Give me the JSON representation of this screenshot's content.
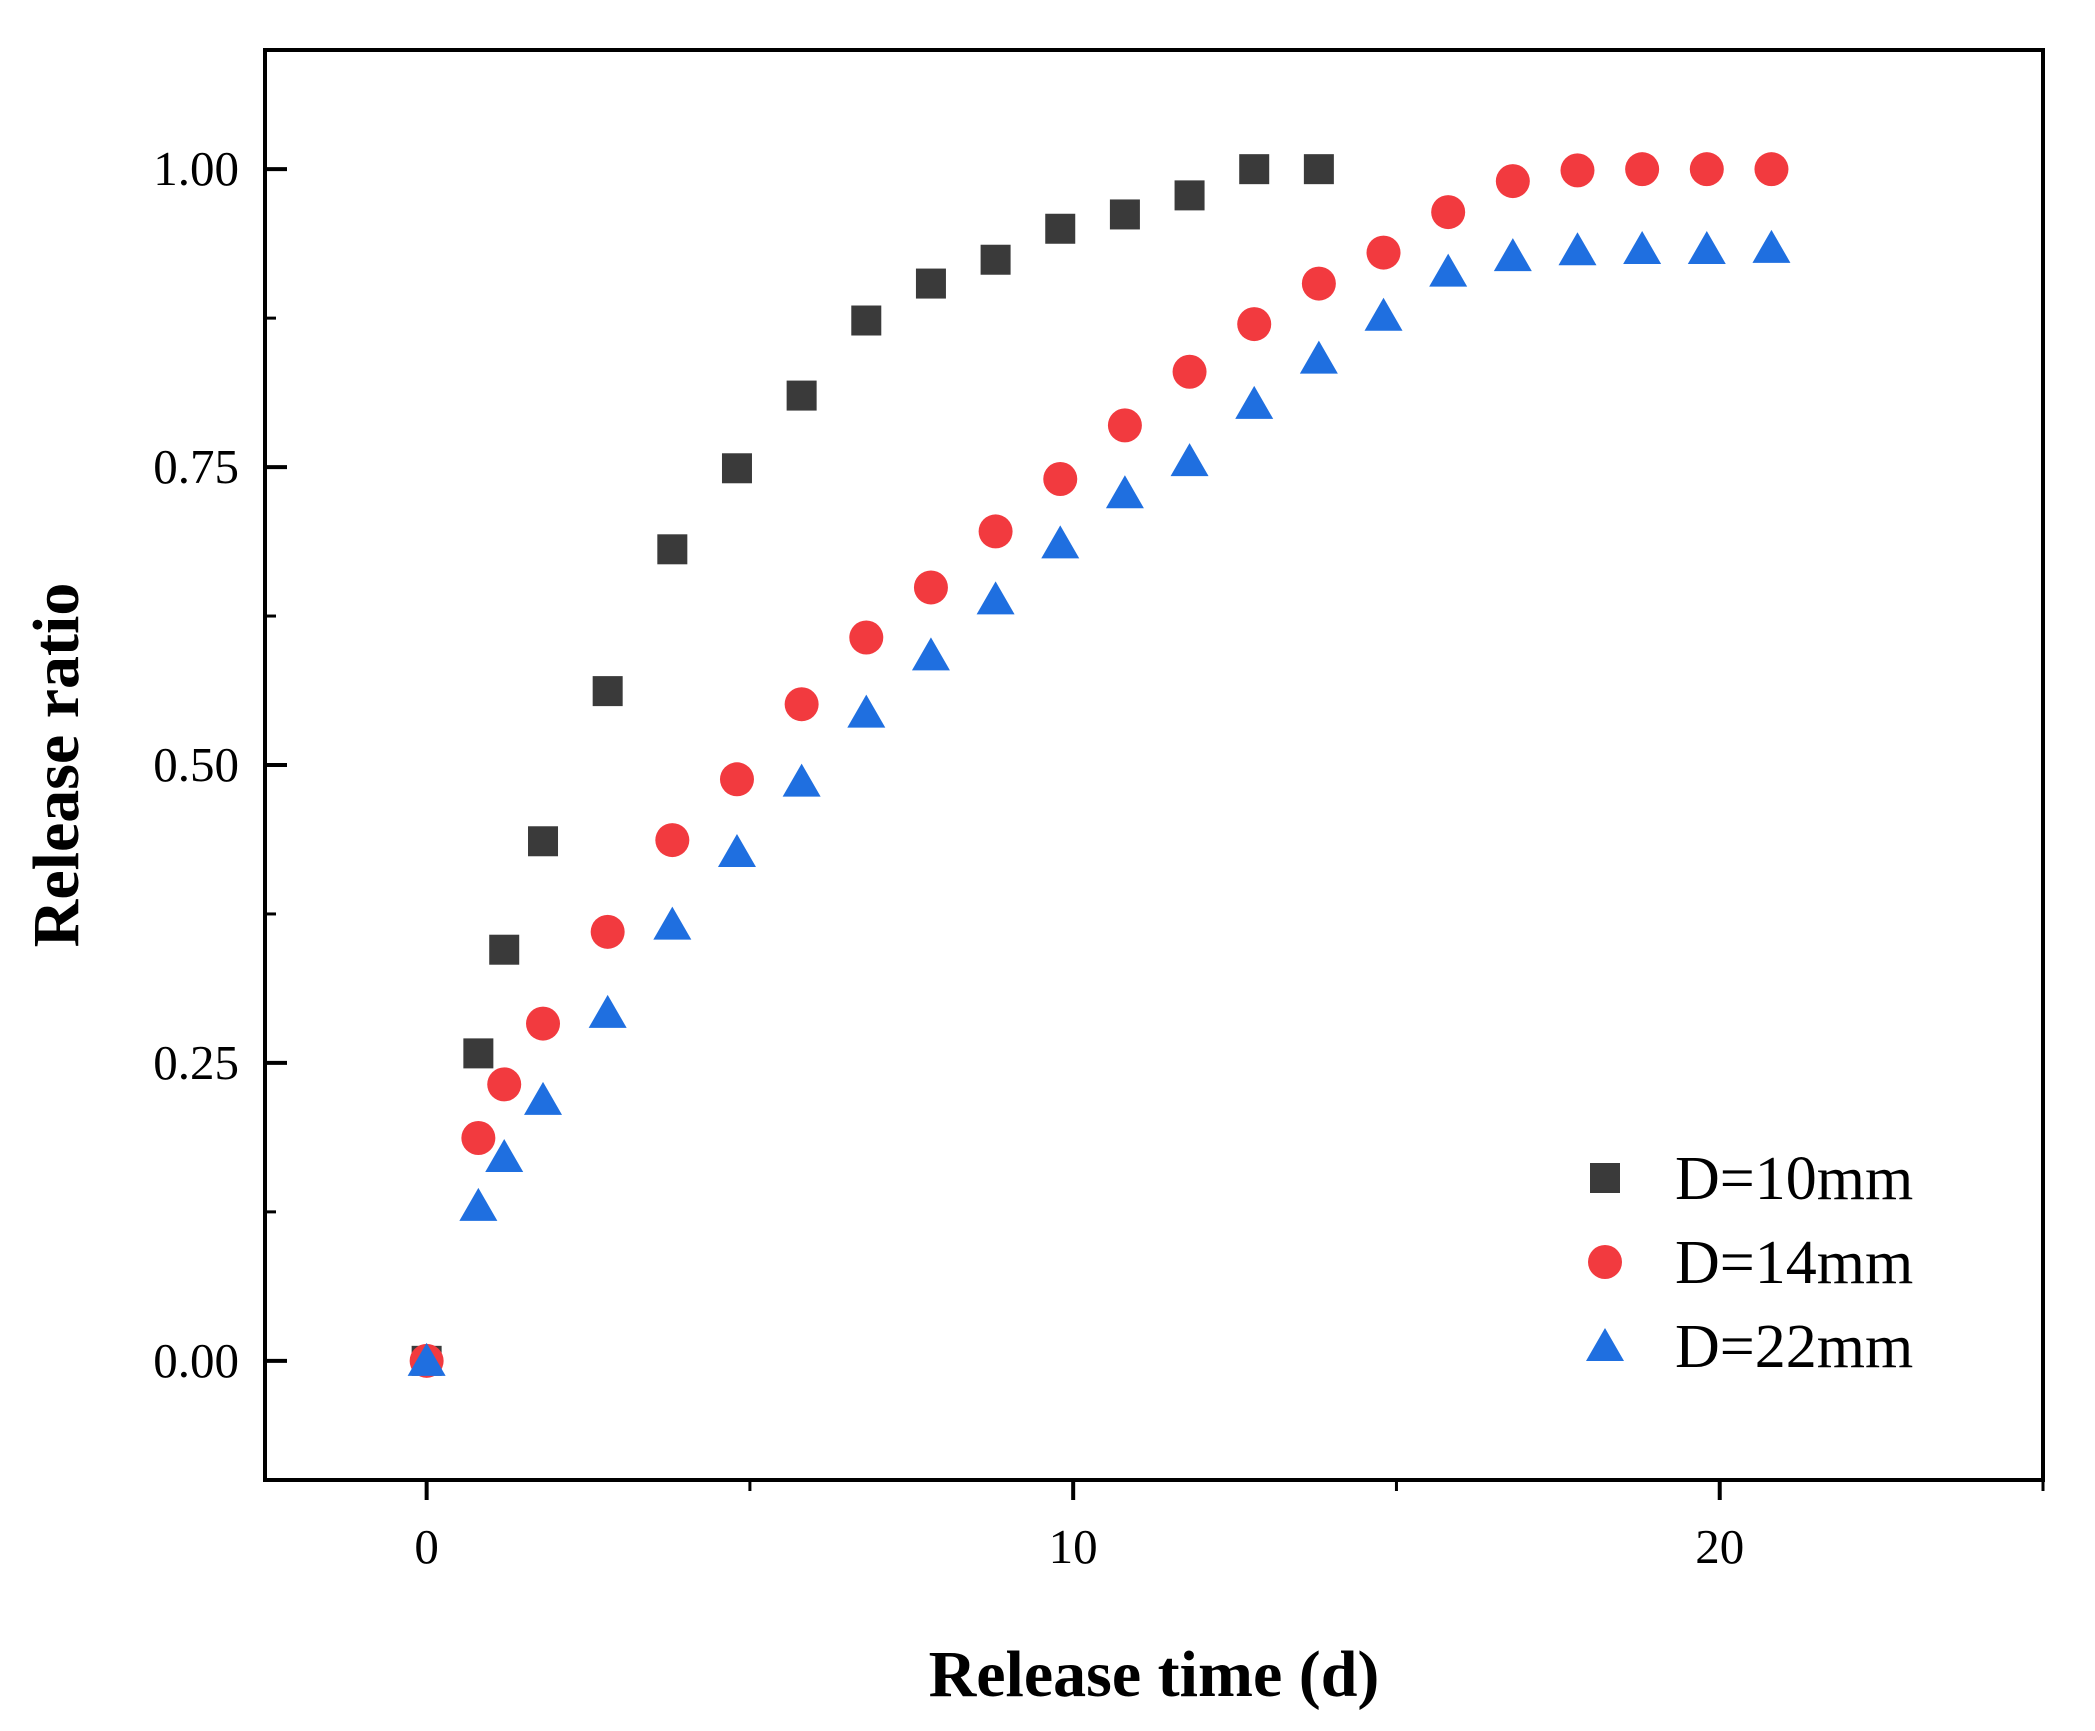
{
  "chart_data": {
    "type": "scatter",
    "title": "",
    "xlabel": "Release time (d)",
    "ylabel": "Release ratio",
    "xlim": [
      -2.5,
      25
    ],
    "ylim": [
      -0.1,
      1.1
    ],
    "xticks": [
      0,
      10,
      20
    ],
    "xtick_labels": [
      "0",
      "10",
      "20"
    ],
    "yticks": [
      0.0,
      0.25,
      0.5,
      0.75,
      1.0
    ],
    "ytick_labels": [
      "0.00",
      "0.25",
      "0.50",
      "0.75",
      "1.00"
    ],
    "grid": false,
    "legend_position": "bottom-right",
    "series": [
      {
        "name": "D=10mm",
        "marker": "square",
        "color": "#3a3a3a",
        "x": [
          0,
          0.8,
          1.2,
          1.8,
          2.8,
          3.8,
          4.8,
          5.8,
          6.8,
          7.8,
          8.8,
          9.8,
          10.8,
          11.8,
          12.8,
          13.8
        ],
        "y": [
          0.0,
          0.258,
          0.345,
          0.436,
          0.562,
          0.681,
          0.749,
          0.81,
          0.873,
          0.904,
          0.924,
          0.95,
          0.962,
          0.978,
          1.0,
          1.0
        ]
      },
      {
        "name": "D=14mm",
        "marker": "circle",
        "color": "#f23a3f",
        "x": [
          0,
          0.8,
          1.2,
          1.8,
          2.8,
          3.8,
          4.8,
          5.8,
          6.8,
          7.8,
          8.8,
          9.8,
          10.8,
          11.8,
          12.8,
          13.8,
          14.8,
          15.8,
          16.8,
          17.8,
          18.8,
          19.8,
          20.8
        ],
        "y": [
          0.0,
          0.187,
          0.232,
          0.283,
          0.36,
          0.437,
          0.488,
          0.551,
          0.607,
          0.649,
          0.696,
          0.74,
          0.785,
          0.83,
          0.87,
          0.904,
          0.93,
          0.964,
          0.99,
          0.999,
          1.0,
          1.0,
          1.0
        ]
      },
      {
        "name": "D=22mm",
        "marker": "triangle",
        "color": "#1f6fe0",
        "x": [
          0,
          0.8,
          1.2,
          1.8,
          2.8,
          3.8,
          4.8,
          5.8,
          6.8,
          7.8,
          8.8,
          9.8,
          10.8,
          11.8,
          12.8,
          13.8,
          14.8,
          15.8,
          16.8,
          17.8,
          18.8,
          19.8,
          20.8
        ],
        "y": [
          0.0,
          0.13,
          0.171,
          0.219,
          0.292,
          0.366,
          0.427,
          0.486,
          0.544,
          0.592,
          0.639,
          0.686,
          0.728,
          0.755,
          0.803,
          0.841,
          0.877,
          0.914,
          0.927,
          0.932,
          0.933,
          0.933,
          0.934
        ]
      }
    ]
  }
}
